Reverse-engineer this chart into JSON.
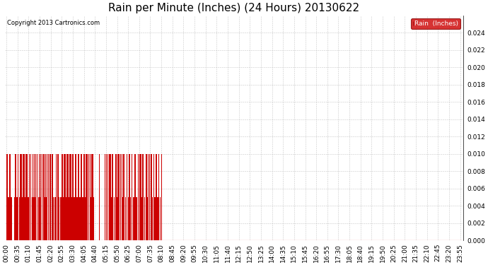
{
  "title": "Rain per Minute (Inches) (24 Hours) 20130622",
  "copyright": "Copyright 2013 Cartronics.com",
  "legend_label": "Rain  (Inches)",
  "legend_bg": "#cc0000",
  "legend_text_color": "#ffffff",
  "bar_color": "#cc0000",
  "line_color": "#cc0000",
  "background_color": "#ffffff",
  "grid_color": "#bbbbbb",
  "ylim": [
    0,
    0.026
  ],
  "yticks": [
    0.0,
    0.002,
    0.004,
    0.006,
    0.008,
    0.01,
    0.012,
    0.014,
    0.016,
    0.018,
    0.02,
    0.022,
    0.024
  ],
  "title_fontsize": 11,
  "tick_fontsize": 6.5,
  "total_minutes": 1440,
  "rain_stop_minute": 490,
  "x_tick_positions": [
    0,
    35,
    70,
    105,
    140,
    175,
    210,
    245,
    280,
    315,
    350,
    385,
    420,
    455,
    490,
    525,
    560,
    595,
    630,
    665,
    700,
    735,
    770,
    805,
    840,
    875,
    910,
    945,
    980,
    1015,
    1050,
    1085,
    1120,
    1155,
    1190,
    1225,
    1260,
    1295,
    1330,
    1365,
    1400,
    1435
  ],
  "x_tick_labels": [
    "00:00",
    "00:35",
    "01:10",
    "01:45",
    "02:20",
    "02:55",
    "03:30",
    "04:05",
    "04:40",
    "05:15",
    "05:50",
    "06:25",
    "07:00",
    "07:35",
    "08:10",
    "08:45",
    "09:20",
    "09:55",
    "10:30",
    "11:05",
    "11:40",
    "12:15",
    "12:50",
    "13:25",
    "14:00",
    "14:35",
    "15:10",
    "15:45",
    "16:20",
    "16:55",
    "17:30",
    "18:05",
    "18:40",
    "19:15",
    "19:50",
    "20:25",
    "21:00",
    "21:35",
    "22:10",
    "22:45",
    "23:20",
    "23:55"
  ]
}
